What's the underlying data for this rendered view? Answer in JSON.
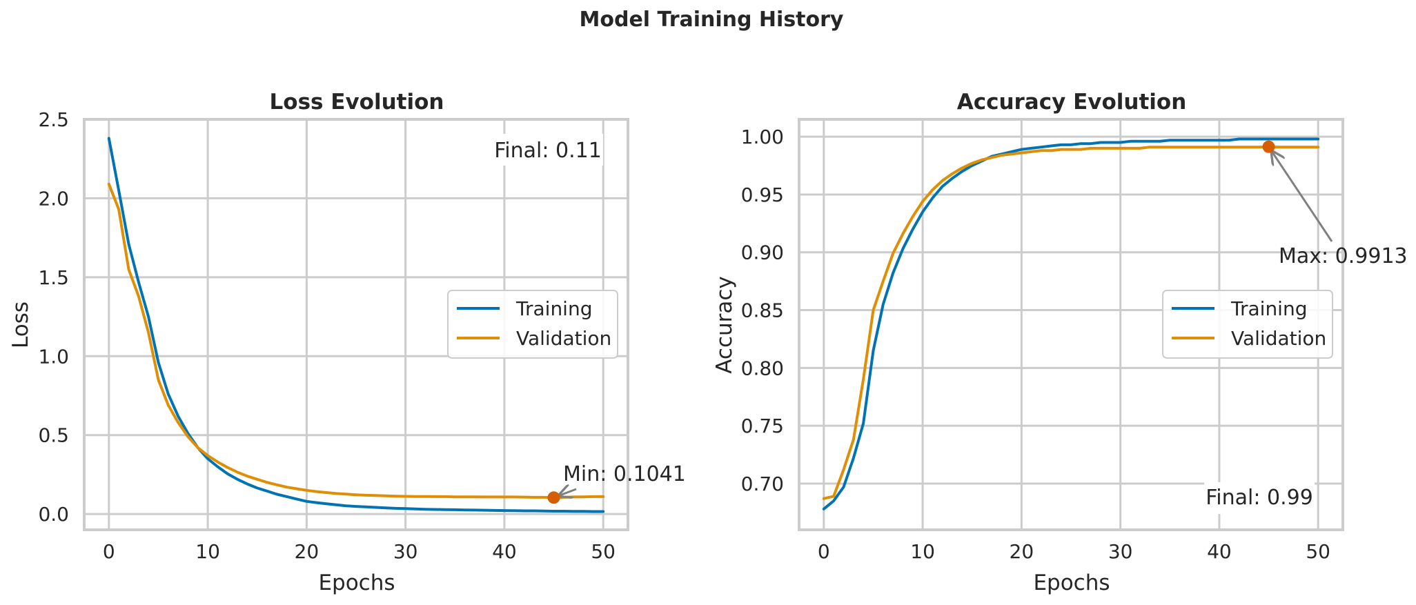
{
  "figure": {
    "title": "Model Training History"
  },
  "colors": {
    "training": "#0173b2",
    "validation": "#de8f05",
    "marker": "#d55e00",
    "arrow": "#808080"
  },
  "chart_data": [
    {
      "type": "line",
      "title": "Loss Evolution",
      "xlabel": "Epochs",
      "ylabel": "Loss",
      "xlim": [
        -2.5,
        52.5
      ],
      "ylim": [
        -0.1,
        2.5
      ],
      "xticks": [
        0,
        10,
        20,
        30,
        40,
        50
      ],
      "yticks": [
        0.0,
        0.5,
        1.0,
        1.5,
        2.0,
        2.5
      ],
      "xtick_labels": [
        "0",
        "10",
        "20",
        "30",
        "40",
        "50"
      ],
      "ytick_labels": [
        "0.0",
        "0.5",
        "1.0",
        "1.5",
        "2.0",
        "2.5"
      ],
      "grid": true,
      "legend": "center right",
      "x": [
        0,
        1,
        2,
        3,
        4,
        5,
        6,
        7,
        8,
        9,
        10,
        11,
        12,
        13,
        14,
        15,
        16,
        17,
        18,
        19,
        20,
        21,
        22,
        23,
        24,
        25,
        26,
        27,
        28,
        29,
        30,
        31,
        32,
        33,
        34,
        35,
        36,
        37,
        38,
        39,
        40,
        41,
        42,
        43,
        44,
        45,
        46,
        47,
        48,
        49,
        50
      ],
      "series": [
        {
          "name": "Training",
          "values": [
            2.38,
            2.05,
            1.71,
            1.47,
            1.25,
            0.96,
            0.76,
            0.62,
            0.51,
            0.42,
            0.35,
            0.3,
            0.255,
            0.22,
            0.19,
            0.165,
            0.145,
            0.125,
            0.11,
            0.095,
            0.08,
            0.072,
            0.065,
            0.058,
            0.052,
            0.048,
            0.045,
            0.042,
            0.039,
            0.036,
            0.034,
            0.032,
            0.03,
            0.029,
            0.028,
            0.027,
            0.026,
            0.025,
            0.024,
            0.023,
            0.022,
            0.021,
            0.02,
            0.02,
            0.019,
            0.018,
            0.018,
            0.017,
            0.017,
            0.016,
            0.016
          ]
        },
        {
          "name": "Validation",
          "values": [
            2.09,
            1.93,
            1.55,
            1.38,
            1.15,
            0.85,
            0.69,
            0.58,
            0.49,
            0.42,
            0.37,
            0.33,
            0.295,
            0.265,
            0.24,
            0.22,
            0.2,
            0.185,
            0.17,
            0.16,
            0.15,
            0.142,
            0.136,
            0.13,
            0.126,
            0.122,
            0.119,
            0.117,
            0.115,
            0.113,
            0.112,
            0.111,
            0.111,
            0.11,
            0.11,
            0.109,
            0.109,
            0.109,
            0.108,
            0.108,
            0.108,
            0.108,
            0.107,
            0.106,
            0.106,
            0.1041,
            0.106,
            0.108,
            0.109,
            0.11,
            0.11
          ]
        }
      ],
      "annotations": [
        {
          "text": "Final: 0.11"
        },
        {
          "text": "Min: 0.1041",
          "point": [
            45,
            0.1041
          ]
        }
      ]
    },
    {
      "type": "line",
      "title": "Accuracy Evolution",
      "xlabel": "Epochs",
      "ylabel": "Accuracy",
      "xlim": [
        -2.5,
        52.5
      ],
      "ylim": [
        0.66,
        1.015
      ],
      "xticks": [
        0,
        10,
        20,
        30,
        40,
        50
      ],
      "yticks": [
        0.7,
        0.75,
        0.8,
        0.85,
        0.9,
        0.95,
        1.0
      ],
      "xtick_labels": [
        "0",
        "10",
        "20",
        "30",
        "40",
        "50"
      ],
      "ytick_labels": [
        "0.70",
        "0.75",
        "0.80",
        "0.85",
        "0.90",
        "0.95",
        "1.00"
      ],
      "grid": true,
      "legend": "center right",
      "x": [
        0,
        1,
        2,
        3,
        4,
        5,
        6,
        7,
        8,
        9,
        10,
        11,
        12,
        13,
        14,
        15,
        16,
        17,
        18,
        19,
        20,
        21,
        22,
        23,
        24,
        25,
        26,
        27,
        28,
        29,
        30,
        31,
        32,
        33,
        34,
        35,
        36,
        37,
        38,
        39,
        40,
        41,
        42,
        43,
        44,
        45,
        46,
        47,
        48,
        49,
        50
      ],
      "series": [
        {
          "name": "Training",
          "values": [
            0.678,
            0.685,
            0.697,
            0.722,
            0.752,
            0.815,
            0.855,
            0.882,
            0.903,
            0.92,
            0.935,
            0.947,
            0.957,
            0.964,
            0.97,
            0.975,
            0.979,
            0.983,
            0.985,
            0.987,
            0.989,
            0.99,
            0.991,
            0.992,
            0.993,
            0.993,
            0.994,
            0.994,
            0.995,
            0.995,
            0.995,
            0.996,
            0.996,
            0.996,
            0.996,
            0.997,
            0.997,
            0.997,
            0.997,
            0.997,
            0.997,
            0.997,
            0.998,
            0.998,
            0.998,
            0.998,
            0.998,
            0.998,
            0.998,
            0.998,
            0.998
          ]
        },
        {
          "name": "Validation",
          "values": [
            0.687,
            0.689,
            0.712,
            0.738,
            0.79,
            0.85,
            0.875,
            0.899,
            0.916,
            0.931,
            0.944,
            0.954,
            0.962,
            0.968,
            0.973,
            0.977,
            0.98,
            0.982,
            0.984,
            0.985,
            0.986,
            0.987,
            0.988,
            0.988,
            0.989,
            0.989,
            0.989,
            0.99,
            0.99,
            0.99,
            0.99,
            0.99,
            0.99,
            0.991,
            0.991,
            0.991,
            0.991,
            0.991,
            0.991,
            0.991,
            0.991,
            0.991,
            0.991,
            0.991,
            0.991,
            0.9913,
            0.991,
            0.991,
            0.991,
            0.991,
            0.991
          ]
        }
      ],
      "annotations": [
        {
          "text": "Final: 0.99"
        },
        {
          "text": "Max: 0.9913",
          "point": [
            45,
            0.9913
          ]
        }
      ]
    }
  ]
}
